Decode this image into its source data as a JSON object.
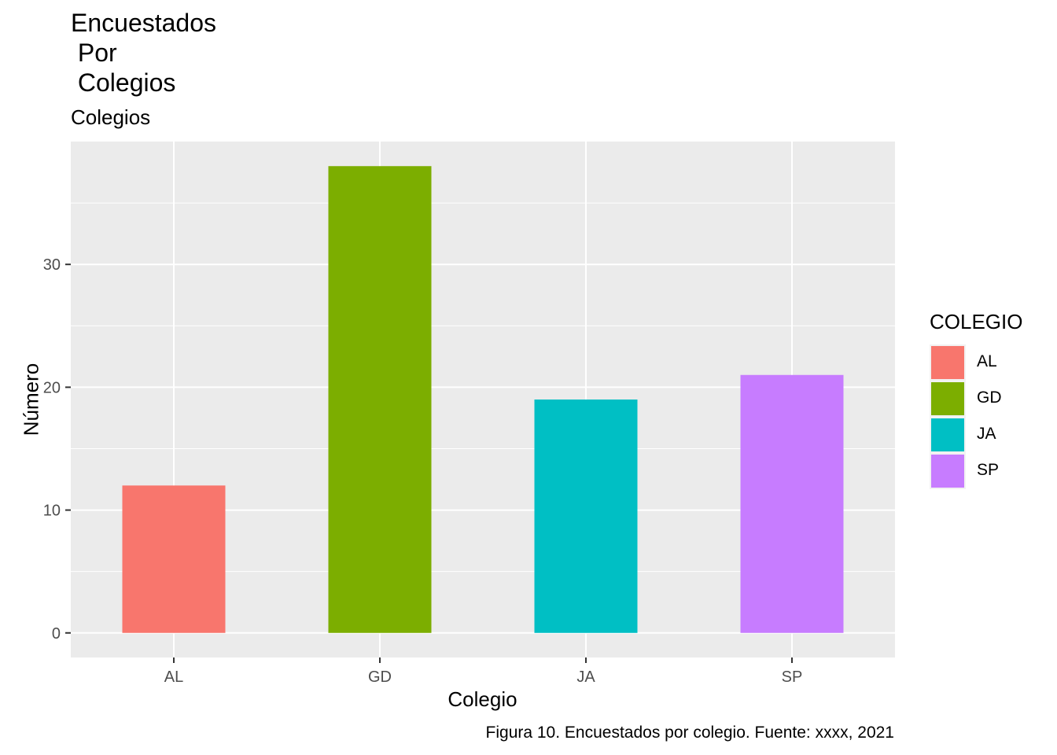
{
  "chart_data": {
    "type": "bar",
    "title_lines": [
      "Encuestados",
      " Por",
      " Colegios"
    ],
    "subtitle": "Colegios",
    "xlabel": "Colegio",
    "ylabel": "Número",
    "caption": "Figura 10. Encuestados por colegio. Fuente: xxxx, 2021",
    "categories": [
      "AL",
      "GD",
      "JA",
      "SP"
    ],
    "values": [
      12,
      38,
      19,
      21
    ],
    "colors": [
      "#F8766D",
      "#7CAE00",
      "#00BFC4",
      "#C77CFF"
    ],
    "ylim": [
      -2,
      40
    ],
    "yticks": [
      0,
      10,
      20,
      30
    ],
    "grid": true,
    "legend": {
      "title": "COLEGIO",
      "position": "right",
      "entries": [
        "AL",
        "GD",
        "JA",
        "SP"
      ]
    }
  }
}
